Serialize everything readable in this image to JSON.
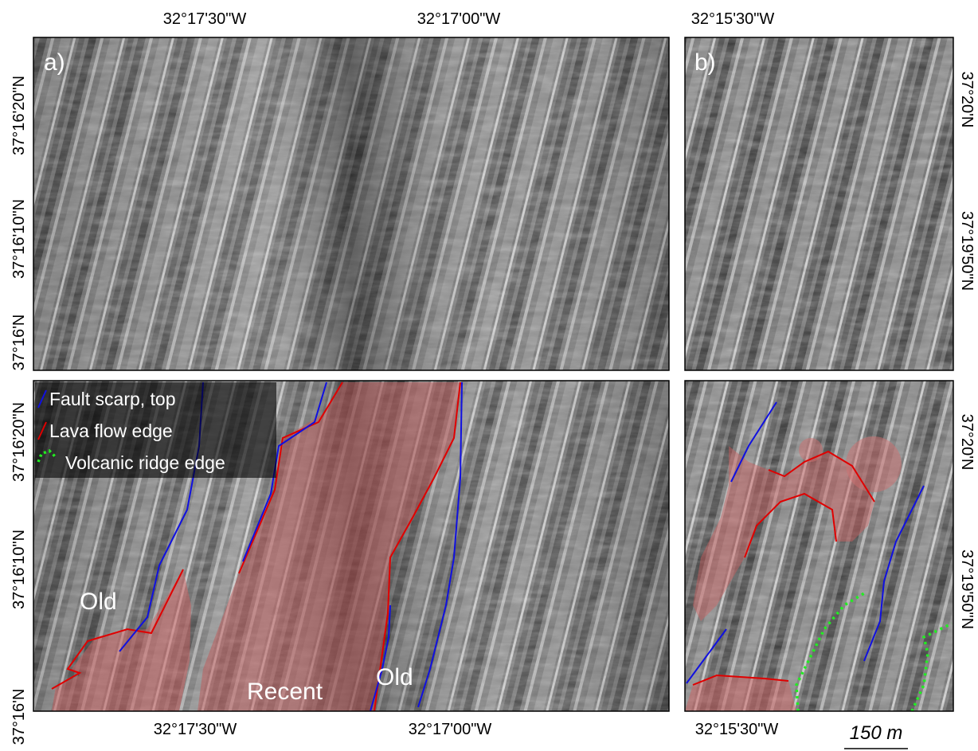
{
  "panel_labels": [
    "a)",
    "b)"
  ],
  "top_axis": {
    "left": [
      "32°17'30\"W",
      "32°17'00\"W"
    ],
    "right": [
      "32°15'30\"W"
    ]
  },
  "bottom_axis": {
    "left": [
      "32°17'30\"W",
      "32°17'00\"W"
    ],
    "right": [
      "32°15'30\"W"
    ]
  },
  "left_axis": {
    "top": [
      "37°16'20\"N",
      "37°16'10\"N",
      "37°16'N"
    ],
    "bottom": [
      "37°16'20\"N",
      "37°16'10\"N",
      "37°16'N"
    ]
  },
  "right_axis": {
    "top": [
      "37°20'N",
      "37°19'50\"N"
    ],
    "bottom": [
      "37°20'N",
      "37°19'50\"N"
    ]
  },
  "legend": [
    "Fault scarp, top",
    "Lava flow edge",
    "Volcanic ridge edge"
  ],
  "annotations": [
    "Old",
    "Recent",
    "Old"
  ],
  "scale_bar": "150 m"
}
